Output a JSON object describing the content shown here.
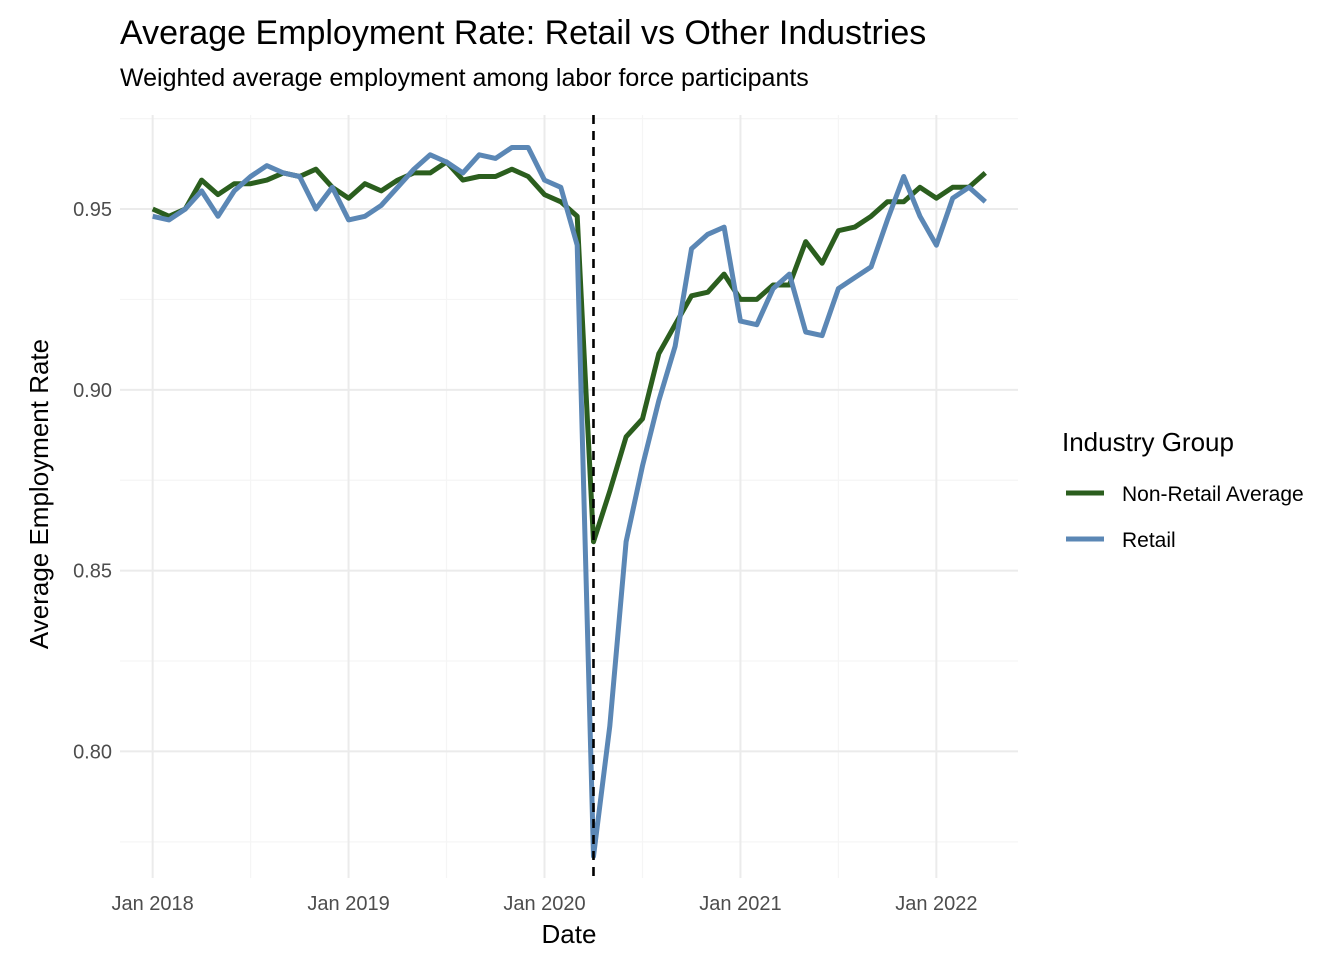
{
  "colors": {
    "background": "#ffffff",
    "grid_major": "#ebebeb",
    "grid_minor": "#f5f5f5",
    "non_retail": "#2b5e1e",
    "retail": "#5b87b5",
    "event_line": "#000000"
  },
  "chart_data": {
    "type": "line",
    "title": "Average Employment Rate: Retail vs Other Industries",
    "subtitle": "Weighted average employment among labor force participants",
    "xlabel": "Date",
    "ylabel": "Average Employment Rate",
    "xlim": [
      "2017-11",
      "2022-06"
    ],
    "ylim": [
      0.765,
      0.976
    ],
    "x_ticks": [
      "2018-01",
      "2019-01",
      "2020-01",
      "2021-01",
      "2022-01"
    ],
    "x_tick_labels": [
      "Jan 2018",
      "Jan 2019",
      "Jan 2020",
      "Jan 2021",
      "Jan 2022"
    ],
    "y_ticks": [
      0.8,
      0.85,
      0.9,
      0.95
    ],
    "y_tick_labels": [
      "0.80",
      "0.85",
      "0.90",
      "0.95"
    ],
    "grid": true,
    "vline": {
      "x": "2020-04",
      "style": "dashed"
    },
    "legend": {
      "title": "Industry Group",
      "placement": "right"
    },
    "x": [
      "2018-01",
      "2018-02",
      "2018-03",
      "2018-04",
      "2018-05",
      "2018-06",
      "2018-07",
      "2018-08",
      "2018-09",
      "2018-10",
      "2018-11",
      "2018-12",
      "2019-01",
      "2019-02",
      "2019-03",
      "2019-04",
      "2019-05",
      "2019-06",
      "2019-07",
      "2019-08",
      "2019-09",
      "2019-10",
      "2019-11",
      "2019-12",
      "2020-01",
      "2020-02",
      "2020-03",
      "2020-04",
      "2020-05",
      "2020-06",
      "2020-07",
      "2020-08",
      "2020-09",
      "2020-10",
      "2020-11",
      "2020-12",
      "2021-01",
      "2021-02",
      "2021-03",
      "2021-04",
      "2021-05",
      "2021-06",
      "2021-07",
      "2021-08",
      "2021-09",
      "2021-10",
      "2021-11",
      "2021-12",
      "2022-01",
      "2022-02",
      "2022-03",
      "2022-04"
    ],
    "series": [
      {
        "name": "Non-Retail Average",
        "values": [
          0.95,
          0.948,
          0.95,
          0.958,
          0.954,
          0.957,
          0.957,
          0.958,
          0.96,
          0.959,
          0.961,
          0.956,
          0.953,
          0.957,
          0.955,
          0.958,
          0.96,
          0.96,
          0.963,
          0.958,
          0.959,
          0.959,
          0.961,
          0.959,
          0.954,
          0.952,
          0.948,
          0.858,
          0.872,
          0.887,
          0.892,
          0.91,
          0.918,
          0.926,
          0.927,
          0.932,
          0.925,
          0.925,
          0.929,
          0.929,
          0.941,
          0.935,
          0.944,
          0.945,
          0.948,
          0.952,
          0.952,
          0.956,
          0.953,
          0.956,
          0.956,
          0.96
        ]
      },
      {
        "name": "Retail",
        "values": [
          0.948,
          0.947,
          0.95,
          0.955,
          0.948,
          0.955,
          0.959,
          0.962,
          0.96,
          0.959,
          0.95,
          0.956,
          0.947,
          0.948,
          0.951,
          0.956,
          0.961,
          0.965,
          0.963,
          0.96,
          0.965,
          0.964,
          0.967,
          0.967,
          0.958,
          0.956,
          0.94,
          0.771,
          0.807,
          0.858,
          0.879,
          0.897,
          0.912,
          0.939,
          0.943,
          0.945,
          0.919,
          0.918,
          0.928,
          0.932,
          0.916,
          0.915,
          0.928,
          0.931,
          0.934,
          0.947,
          0.959,
          0.948,
          0.94,
          0.953,
          0.956,
          0.952
        ]
      }
    ]
  }
}
